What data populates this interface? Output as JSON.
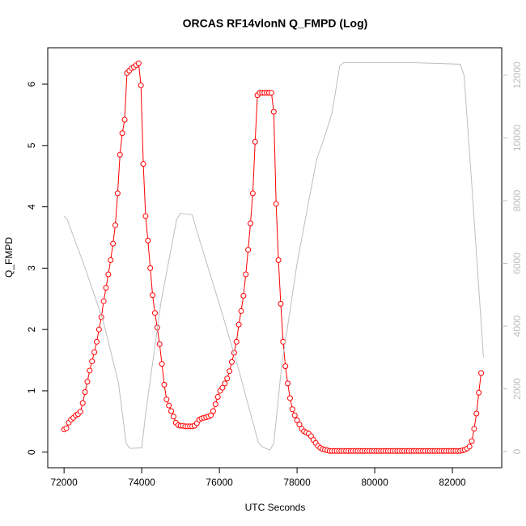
{
  "chart_data": {
    "type": "line",
    "title": "ORCAS RF14vlonN Q_FMPD (Log)",
    "xlabel": "UTC Seconds",
    "ylabel": "Q_FMPD",
    "xlim": [
      71580,
      83270
    ],
    "xticks": [
      72000,
      74000,
      76000,
      78000,
      80000,
      82000
    ],
    "ylim": [
      -0.254,
      6.594
    ],
    "yticks": [
      0,
      1,
      2,
      3,
      4,
      5,
      6
    ],
    "y2lim": [
      -516,
      12877
    ],
    "y2ticks": [
      0,
      2000,
      4000,
      6000,
      8000,
      10000,
      12000
    ],
    "series": [
      {
        "color": "#ff0000",
        "markers": true,
        "x": [
          72000,
          72060,
          72120,
          72180,
          72240,
          72300,
          72360,
          72420,
          72480,
          72540,
          72600,
          72660,
          72720,
          72780,
          72840,
          72900,
          72960,
          73020,
          73080,
          73140,
          73200,
          73260,
          73320,
          73380,
          73440,
          73500,
          73560,
          73620,
          73680,
          73740,
          73800,
          73860,
          73920,
          73980,
          74040,
          74100,
          74160,
          74220,
          74280,
          74340,
          74400,
          74460,
          74520,
          74580,
          74640,
          74700,
          74760,
          74820,
          74880,
          74940,
          75000,
          75060,
          75120,
          75180,
          75240,
          75300,
          75360,
          75420,
          75480,
          75540,
          75600,
          75660,
          75720,
          75780,
          75840,
          75900,
          75960,
          76020,
          76080,
          76140,
          76200,
          76260,
          76320,
          76380,
          76440,
          76500,
          76560,
          76620,
          76680,
          76740,
          76800,
          76860,
          76920,
          76980,
          77040,
          77100,
          77160,
          77220,
          77280,
          77340,
          77400,
          77460,
          77520,
          77580,
          77640,
          77700,
          77760,
          77820,
          77880,
          77940,
          78000,
          78060,
          78120,
          78180,
          78240,
          78300,
          78360,
          78420,
          78480,
          78540,
          78600,
          78660,
          78720,
          78780,
          78840,
          78900,
          78960,
          79020,
          79080,
          79140,
          79200,
          79260,
          79320,
          79380,
          79440,
          79500,
          79560,
          79620,
          79680,
          79740,
          79800,
          79860,
          79920,
          79980,
          80040,
          80100,
          80160,
          80220,
          80280,
          80340,
          80400,
          80460,
          80520,
          80580,
          80640,
          80700,
          80760,
          80820,
          80880,
          80940,
          81000,
          81060,
          81120,
          81180,
          81240,
          81300,
          81360,
          81420,
          81480,
          81540,
          81600,
          81660,
          81720,
          81780,
          81840,
          81900,
          81960,
          82020,
          82080,
          82140,
          82200,
          82260,
          82320,
          82380,
          82440,
          82500,
          82560,
          82620,
          82680,
          82740
        ],
        "values": [
          0.37,
          0.39,
          0.48,
          0.53,
          0.56,
          0.6,
          0.62,
          0.66,
          0.8,
          0.98,
          1.15,
          1.33,
          1.48,
          1.63,
          1.8,
          2.0,
          2.2,
          2.46,
          2.68,
          2.9,
          3.13,
          3.4,
          3.7,
          4.22,
          4.85,
          5.2,
          5.42,
          6.18,
          6.22,
          6.26,
          6.28,
          6.31,
          6.34,
          5.98,
          4.7,
          3.85,
          3.45,
          3.0,
          2.56,
          2.27,
          2.03,
          1.76,
          1.44,
          1.1,
          0.86,
          0.76,
          0.67,
          0.58,
          0.48,
          0.44,
          0.43,
          0.43,
          0.42,
          0.42,
          0.42,
          0.42,
          0.43,
          0.47,
          0.53,
          0.55,
          0.56,
          0.57,
          0.58,
          0.6,
          0.67,
          0.78,
          0.9,
          1.0,
          1.05,
          1.12,
          1.2,
          1.32,
          1.47,
          1.62,
          1.8,
          2.08,
          2.3,
          2.55,
          2.9,
          3.3,
          3.73,
          4.22,
          5.06,
          5.82,
          5.86,
          5.86,
          5.86,
          5.86,
          5.86,
          5.86,
          5.55,
          4.05,
          3.13,
          2.42,
          1.8,
          1.4,
          1.12,
          0.88,
          0.7,
          0.6,
          0.52,
          0.45,
          0.38,
          0.34,
          0.32,
          0.3,
          0.26,
          0.2,
          0.15,
          0.1,
          0.07,
          0.05,
          0.04,
          0.03,
          0.02,
          0.02,
          0.02,
          0.02,
          0.02,
          0.02,
          0.02,
          0.02,
          0.02,
          0.02,
          0.02,
          0.02,
          0.02,
          0.02,
          0.02,
          0.02,
          0.02,
          0.02,
          0.02,
          0.02,
          0.02,
          0.02,
          0.02,
          0.02,
          0.02,
          0.02,
          0.02,
          0.02,
          0.02,
          0.02,
          0.02,
          0.02,
          0.02,
          0.02,
          0.02,
          0.02,
          0.02,
          0.02,
          0.02,
          0.02,
          0.02,
          0.02,
          0.02,
          0.02,
          0.02,
          0.02,
          0.02,
          0.02,
          0.02,
          0.02,
          0.02,
          0.02,
          0.02,
          0.02,
          0.02,
          0.02,
          0.02,
          0.03,
          0.04,
          0.06,
          0.09,
          0.18,
          0.38,
          0.63,
          0.97,
          1.29
        ]
      },
      {
        "color": "#bebebe",
        "axis": "y2",
        "markers": false,
        "x": [
          72000,
          72080,
          72500,
          73000,
          73400,
          73600,
          73700,
          74000,
          74100,
          74500,
          74900,
          75000,
          75300,
          75500,
          76000,
          76500,
          77000,
          77100,
          77300,
          77400,
          77600,
          78000,
          78500,
          78700,
          78900,
          79100,
          79200,
          80000,
          81000,
          82200,
          82300,
          82500,
          82800
        ],
        "values": [
          7500,
          7400,
          6000,
          4200,
          2200,
          250,
          100,
          120,
          1200,
          4800,
          7400,
          7600,
          7550,
          6700,
          4700,
          2600,
          300,
          150,
          50,
          250,
          2700,
          6000,
          9300,
          10000,
          10800,
          12300,
          12400,
          12400,
          12400,
          12350,
          12000,
          8500,
          3000
        ]
      }
    ]
  }
}
